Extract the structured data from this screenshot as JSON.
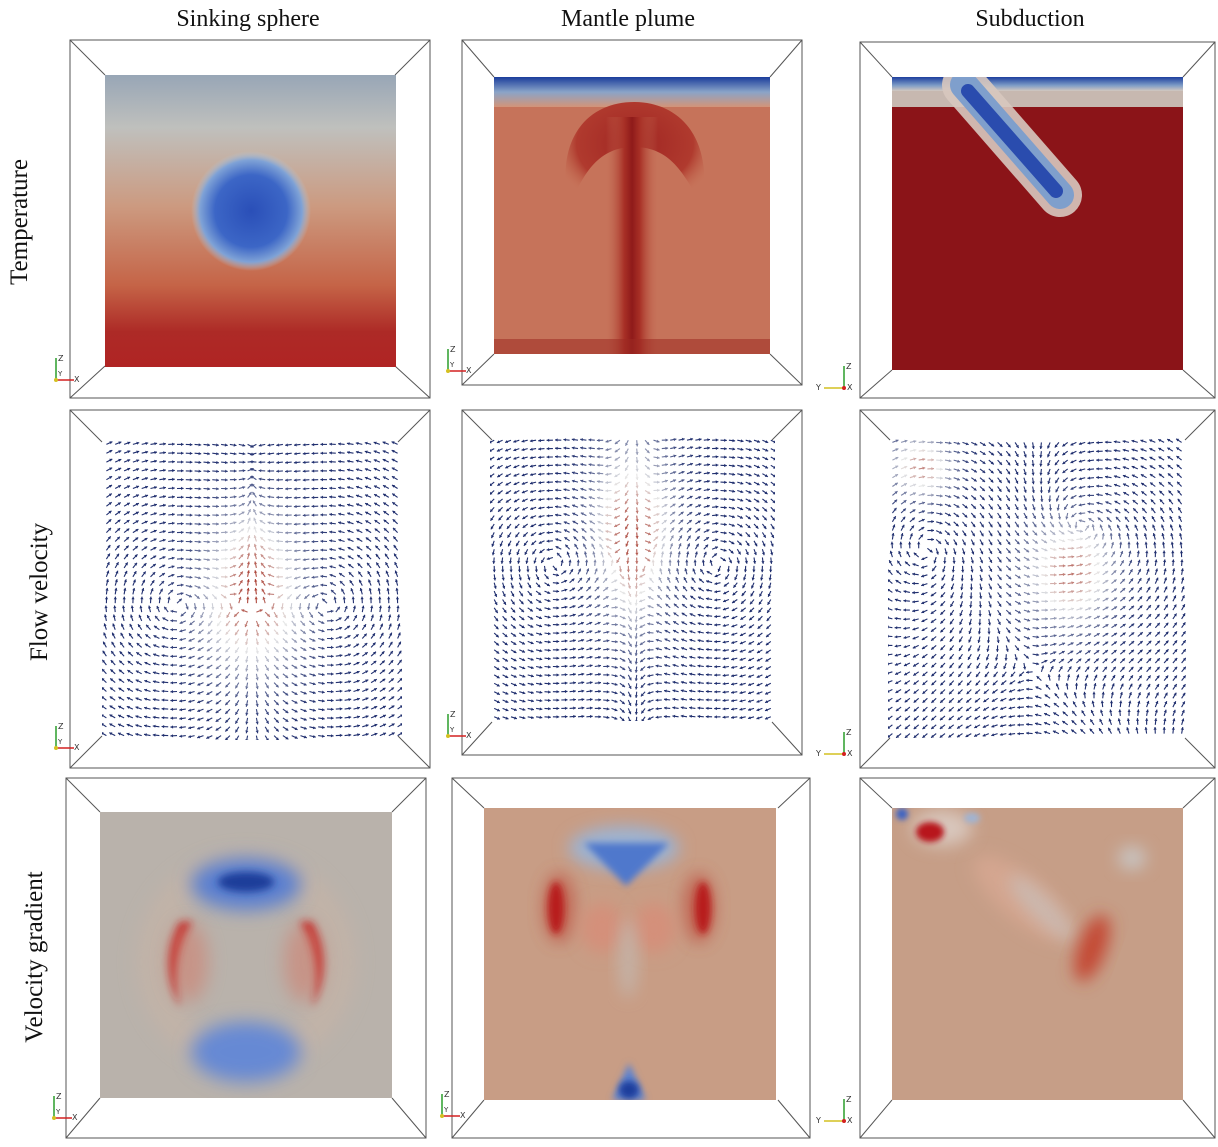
{
  "columns": [
    {
      "id": "sinking",
      "title": "Sinking sphere"
    },
    {
      "id": "plume",
      "title": "Mantle plume"
    },
    {
      "id": "subduction",
      "title": "Subduction"
    }
  ],
  "rows": [
    {
      "id": "temperature",
      "title": "Temperature"
    },
    {
      "id": "velocity",
      "title": "Flow velocity"
    },
    {
      "id": "gradient",
      "title": "Velocity gradient"
    }
  ],
  "axis_labels": {
    "z": "Z",
    "y": "Y",
    "x": "X"
  },
  "colors": {
    "dark_red": "#8b1418",
    "red": "#b8282a",
    "warm_orange": "#c97a5c",
    "tan": "#c79a82",
    "neutral": "#b8b3ad",
    "gray_blue": "#9aa7b3",
    "blue": "#3b63c4",
    "dark_blue": "#1d3c9c",
    "navy_arrow": "#1f2e6e",
    "axis_z": "#2a9d2a",
    "axis_x": "#d42020",
    "axis_y": "#d4c020"
  }
}
